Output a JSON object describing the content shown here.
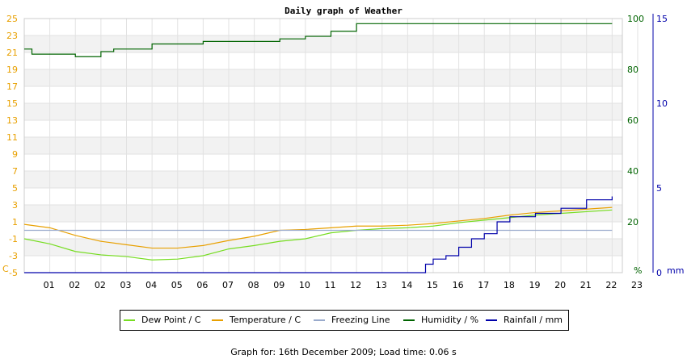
{
  "chart_data": {
    "type": "line",
    "title": "Daily graph of Weather",
    "x_ticks": [
      "01",
      "02",
      "02",
      "03",
      "04",
      "05",
      "06",
      "07",
      "08",
      "09",
      "10",
      "11",
      "12",
      "13",
      "14",
      "15",
      "16",
      "17",
      "18",
      "19",
      "20",
      "21",
      "22",
      "23"
    ],
    "axes": {
      "left": {
        "unit": "C",
        "min": -5,
        "max": 25,
        "ticks": [
          -5,
          -3,
          -1,
          1,
          3,
          5,
          7,
          9,
          11,
          13,
          15,
          17,
          19,
          21,
          23,
          25
        ],
        "color": "#e8a000"
      },
      "humidity": {
        "unit": "%",
        "min": 0,
        "max": 100,
        "ticks": [
          0,
          20,
          40,
          60,
          80,
          100
        ],
        "color": "#006400"
      },
      "rain": {
        "unit": "mm",
        "min": 0,
        "max": 15,
        "ticks": [
          0,
          5,
          10,
          15
        ],
        "color": "#0000aa"
      }
    },
    "series": [
      {
        "name": "Dew Point / C",
        "color": "#77dd22",
        "axis": "left",
        "points": [
          [
            0,
            -1.0
          ],
          [
            1,
            -1.6
          ],
          [
            2,
            -2.5
          ],
          [
            3,
            -2.9
          ],
          [
            4,
            -3.1
          ],
          [
            5,
            -3.5
          ],
          [
            6,
            -3.4
          ],
          [
            7,
            -3.0
          ],
          [
            8,
            -2.2
          ],
          [
            9,
            -1.8
          ],
          [
            10,
            -1.3
          ],
          [
            11,
            -1.0
          ],
          [
            12,
            -0.3
          ],
          [
            13,
            0.0
          ],
          [
            14,
            0.2
          ],
          [
            15,
            0.3
          ],
          [
            16,
            0.5
          ],
          [
            17,
            0.9
          ],
          [
            18,
            1.2
          ],
          [
            19,
            1.5
          ],
          [
            20,
            1.8
          ],
          [
            21,
            2.0
          ],
          [
            22,
            2.2
          ],
          [
            23,
            2.4
          ]
        ]
      },
      {
        "name": "Temperature / C",
        "color": "#e8a000",
        "axis": "left",
        "points": [
          [
            0,
            0.7
          ],
          [
            1,
            0.3
          ],
          [
            2,
            -0.6
          ],
          [
            3,
            -1.3
          ],
          [
            4,
            -1.7
          ],
          [
            5,
            -2.1
          ],
          [
            6,
            -2.1
          ],
          [
            7,
            -1.8
          ],
          [
            8,
            -1.2
          ],
          [
            9,
            -0.7
          ],
          [
            10,
            0.0
          ],
          [
            11,
            0.1
          ],
          [
            12,
            0.3
          ],
          [
            13,
            0.5
          ],
          [
            14,
            0.5
          ],
          [
            15,
            0.6
          ],
          [
            16,
            0.8
          ],
          [
            17,
            1.1
          ],
          [
            18,
            1.4
          ],
          [
            19,
            1.8
          ],
          [
            20,
            2.1
          ],
          [
            21,
            2.3
          ],
          [
            22,
            2.5
          ],
          [
            23,
            2.7
          ]
        ]
      },
      {
        "name": "Freezing Line",
        "color": "#99aacc",
        "axis": "left",
        "points": [
          [
            0,
            0
          ],
          [
            23,
            0
          ]
        ]
      },
      {
        "name": "Humidity / %",
        "color": "#006400",
        "axis": "humidity",
        "points": [
          [
            0,
            88
          ],
          [
            0.3,
            86
          ],
          [
            1,
            86
          ],
          [
            2,
            85
          ],
          [
            3,
            87
          ],
          [
            3.5,
            88
          ],
          [
            4,
            88
          ],
          [
            5,
            90
          ],
          [
            6,
            90
          ],
          [
            7,
            91
          ],
          [
            8,
            91
          ],
          [
            9,
            91
          ],
          [
            10,
            92
          ],
          [
            11,
            93
          ],
          [
            12,
            95
          ],
          [
            13,
            98
          ],
          [
            14,
            98
          ],
          [
            15,
            98
          ],
          [
            16,
            98
          ],
          [
            17,
            98
          ],
          [
            18,
            98
          ],
          [
            19,
            98
          ],
          [
            20,
            98
          ],
          [
            21,
            98
          ],
          [
            22,
            98
          ],
          [
            23,
            98
          ]
        ]
      },
      {
        "name": "Rainfall / mm",
        "color": "#0000aa",
        "axis": "rain",
        "points": [
          [
            0,
            0
          ],
          [
            15,
            0
          ],
          [
            15.7,
            0.5
          ],
          [
            16,
            0.8
          ],
          [
            16.5,
            1.0
          ],
          [
            17,
            1.5
          ],
          [
            17.5,
            2.0
          ],
          [
            18,
            2.3
          ],
          [
            18.5,
            3.0
          ],
          [
            19,
            3.3
          ],
          [
            20,
            3.5
          ],
          [
            21,
            3.8
          ],
          [
            22,
            4.3
          ],
          [
            23,
            4.5
          ]
        ]
      }
    ]
  },
  "axis_unit_labels": {
    "left": "C",
    "humidity": "%",
    "rain": "mm"
  },
  "legend": [
    {
      "label": "Dew Point / C",
      "color": "#77dd22"
    },
    {
      "label": "Temperature / C",
      "color": "#e8a000"
    },
    {
      "label": "Freezing Line",
      "color": "#99aacc"
    },
    {
      "label": "Humidity / %",
      "color": "#006400"
    },
    {
      "label": "Rainfall / mm",
      "color": "#0000aa"
    }
  ],
  "footer": "Graph for: 16th December 2009; Load time: 0.06 s"
}
